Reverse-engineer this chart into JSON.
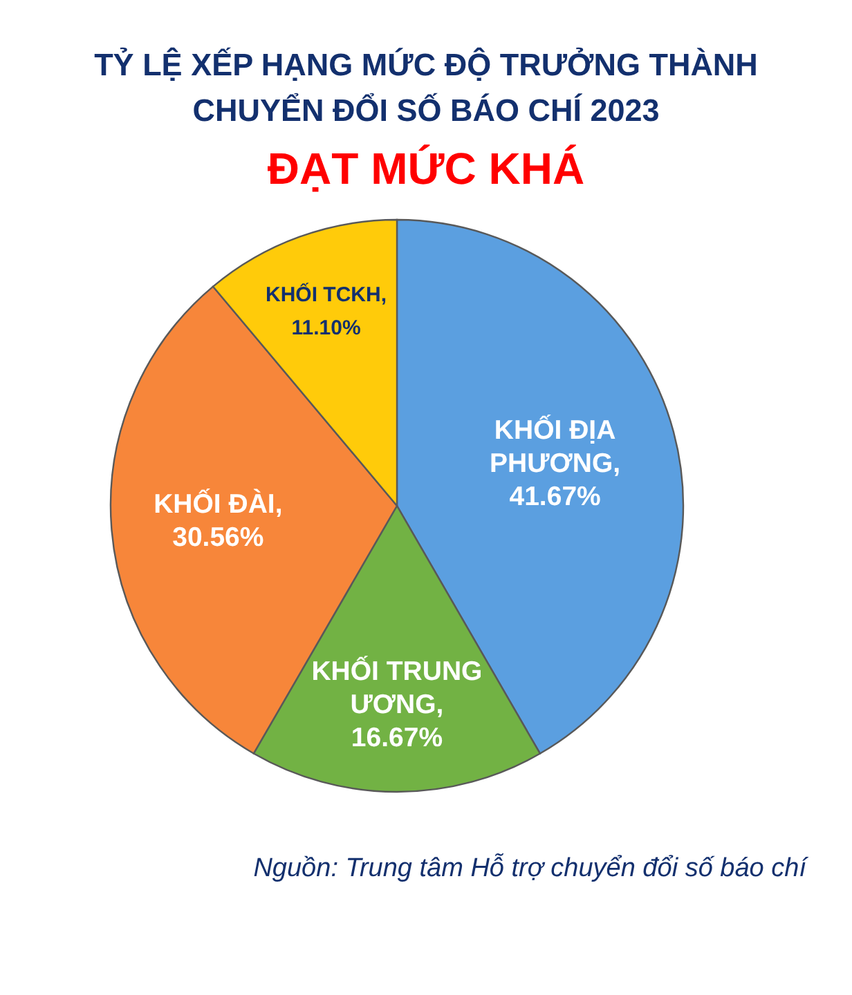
{
  "chart_data": {
    "type": "pie",
    "title": "TỶ LỆ XẾP HẠNG MỨC ĐỘ TRƯỞNG THÀNH CHUYỂN ĐỔI SỐ BÁO CHÍ 2023",
    "subtitle": "ĐẠT MỨC KHÁ",
    "categories": [
      null,
      null,
      null,
      null
    ],
    "values": [
      41.67,
      16.67,
      30.56,
      11.1
    ],
    "colors": [
      "#5b9fe0",
      "#72b244",
      "#f7863a",
      "#ffcb0a"
    ],
    "value_labels": [
      "KHỐI ĐỊA PHƯƠNG, 41.67%",
      "KHỐI TRUNG ƯƠNG, 16.67%",
      "KHỐI ĐÀI, 30.56%",
      "KHỐI TCKH, 11.10%"
    ],
    "annotations": [
      "Nguồn: Trung tâm Hỗ trợ chuyển đổi số báo chí"
    ]
  }
}
